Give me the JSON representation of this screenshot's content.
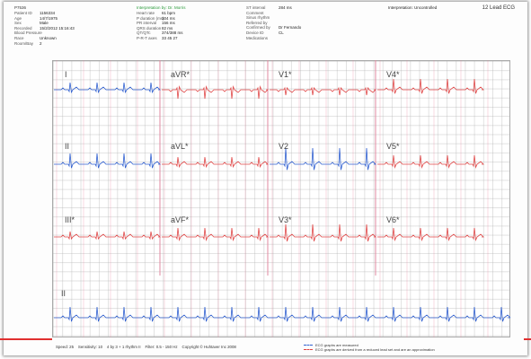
{
  "header": {
    "col1": [
      {
        "k": "Patient ID",
        "v": "1156334"
      },
      {
        "k": "Age",
        "v": "14/7/1975"
      },
      {
        "k": "Sex",
        "v": "Male"
      },
      {
        "k": "Recorded",
        "v": "15/2/2012 15:16:43"
      },
      {
        "k": "Blood Pressure",
        "v": ""
      },
      {
        "k": "Race",
        "v": "Unknown"
      },
      {
        "k": "Room/Bay",
        "v": "2"
      }
    ],
    "col2_heading": "Interpretation by: Dr. Morris",
    "col2": [
      {
        "k": "Heart rate",
        "v": "61 bpm"
      },
      {
        "k": "P duration (ms)",
        "v": "104 ms"
      },
      {
        "k": "PR interval",
        "v": "156 ms"
      },
      {
        "k": "QRS duration",
        "v": "82 ms"
      },
      {
        "k": "QT/QTc",
        "v": "374/388 ms"
      },
      {
        "k": "P-R-T axes",
        "v": "33 45 27"
      }
    ],
    "col3": [
      {
        "k": "ST interval",
        "v": "284 ms"
      },
      {
        "k": "Comment",
        "v": ""
      },
      {
        "k": "Sinus rhythm",
        "v": ""
      },
      {
        "k": "Referred by",
        "v": ""
      },
      {
        "k": "Confirmed by",
        "v": "Dr Fernando"
      },
      {
        "k": "Device ID",
        "v": "CL"
      },
      {
        "k": "Medications",
        "v": ""
      }
    ],
    "col4": [
      {
        "k": "",
        "v": "Interpretation: Uncontrolled"
      }
    ],
    "ecg_title": "12 Lead ECG",
    "patient_name": "P7536"
  },
  "leads": [
    "I",
    "aVR*",
    "V1*",
    "V4*",
    "II",
    "aVL*",
    "V2",
    "V5*",
    "III*",
    "aVF*",
    "V3*",
    "V6*",
    "II"
  ],
  "footer": {
    "speed": "Speed: 25",
    "sensitivity": "Sensitivity: 10",
    "filter": "4 by 3 + 1 rhythm II",
    "freq": "Filter: 0.5 - 150 Hz",
    "copyright": "Copyright © Huhtaver Inc 2008",
    "legend_1": "ECG graphs are measured",
    "legend_2": "ECG graphs are derived from a reduced lead set and are an approximation"
  },
  "colors": {
    "measured": "#2f5fd0",
    "derived": "#e04848",
    "marker": "#e03030"
  }
}
